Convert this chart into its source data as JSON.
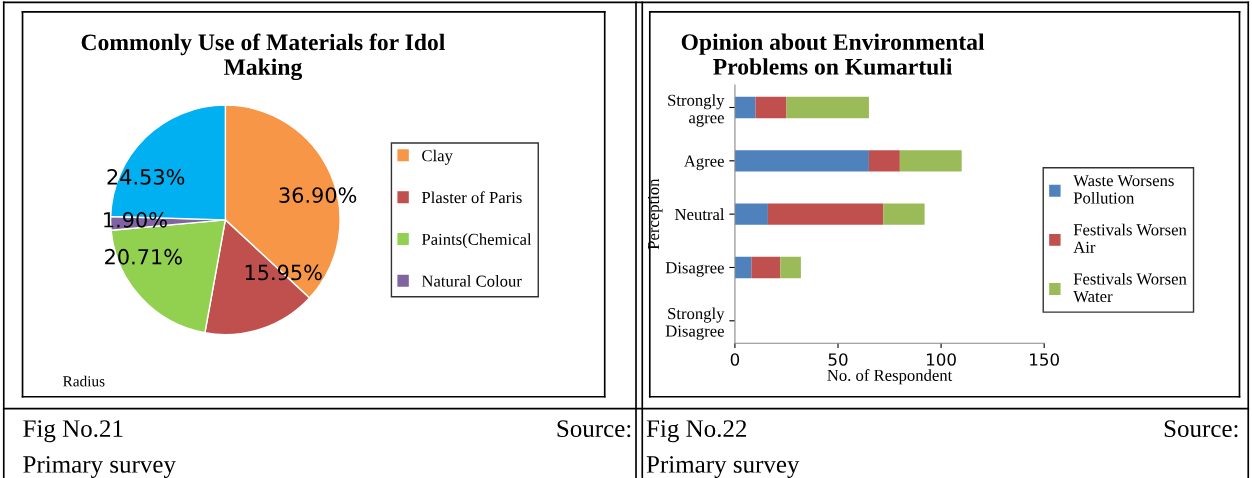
{
  "chart_data": [
    {
      "type": "pie",
      "title": "Commonly Use of Materials for Idol Making",
      "categories": [
        "Clay",
        "Plaster of Paris",
        "Paints(Chemical",
        "Natural Colour",
        null
      ],
      "values": [
        36.9,
        15.95,
        20.71,
        1.9,
        24.53
      ],
      "value_labels": [
        "36.90%",
        "15.95%",
        "20.71%",
        "1.90%",
        "24.53%"
      ],
      "colors": [
        "#f79646",
        "#c0504d",
        "#92d050",
        "#8064a2",
        "#00b0f0"
      ],
      "legend": "right",
      "annotations": [
        "Radius",
        "Fig No.21",
        "Source:",
        "Primary survey"
      ]
    },
    {
      "type": "bar",
      "orientation": "horizontal",
      "stacked": true,
      "title": "Opinion about Environmental Problems on Kumartuli",
      "xlabel": "No. of Respondent",
      "ylabel": "Perception",
      "categories": [
        "Strongly agree",
        "Agree",
        "Neutral",
        "Disagree",
        "Strongly Disagree"
      ],
      "series": [
        {
          "name": "Waste Worsens Pollution",
          "color": "#4f81bd",
          "values": [
            10,
            65,
            16,
            8,
            0
          ]
        },
        {
          "name": "Festivals Worsen Air",
          "color": "#c0504d",
          "values": [
            15,
            15,
            56,
            14,
            0
          ]
        },
        {
          "name": "Festivals Worsen Water",
          "color": "#9bbb59",
          "values": [
            40,
            30,
            20,
            10,
            0
          ]
        }
      ],
      "xlim": [
        0,
        150
      ],
      "xticks": [
        0,
        50,
        100,
        150
      ],
      "legend": "right",
      "grid": false,
      "annotations": [
        "Fig No.22",
        "Source:",
        "Primary survey"
      ]
    }
  ]
}
